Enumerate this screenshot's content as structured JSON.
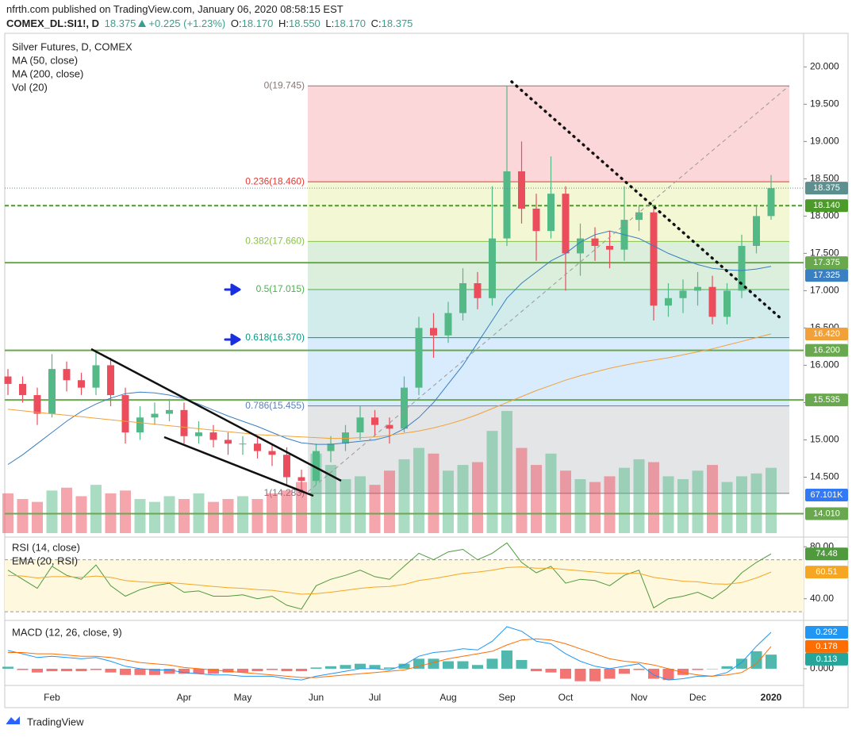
{
  "header": {
    "published": "nfrth.com published on TradingView.com, January 06, 2020 08:58:15 EST",
    "symbol": "COMEX_DL:SI1!, D",
    "last": "18.375",
    "change": "+0.225 (+1.23%)",
    "ohlc": [
      {
        "key": "O:",
        "value": "18.170"
      },
      {
        "key": "H:",
        "value": "18.550"
      },
      {
        "key": "L:",
        "value": "18.170"
      },
      {
        "key": "C:",
        "value": "18.375"
      }
    ]
  },
  "footer": {
    "brand": "TradingView"
  },
  "chart_data": [
    {
      "type": "candlestick",
      "title": "Silver Futures, D, COMEX",
      "categories": [
        null,
        null,
        null,
        "Feb",
        null,
        null,
        null,
        null,
        null,
        null,
        null,
        null,
        "Apr",
        null,
        null,
        null,
        "May",
        null,
        null,
        null,
        null,
        "Jun",
        null,
        null,
        null,
        "Jul",
        null,
        null,
        null,
        null,
        "Aug",
        null,
        null,
        null,
        "Sep",
        null,
        null,
        null,
        "Oct",
        null,
        null,
        null,
        null,
        "Nov",
        null,
        null,
        null,
        "Dec",
        null,
        null,
        null,
        null,
        "2020"
      ],
      "open": [
        15.85,
        15.75,
        15.6,
        15.35,
        15.95,
        15.8,
        15.7,
        16.0,
        15.6,
        15.1,
        15.3,
        15.35,
        15.4,
        15.05,
        15.1,
        15.0,
        14.95,
        14.95,
        14.85,
        14.8,
        14.5,
        14.45,
        14.85,
        14.95,
        15.1,
        15.3,
        15.2,
        15.15,
        15.7,
        16.5,
        16.4,
        16.7,
        17.1,
        16.9,
        17.7,
        18.6,
        18.1,
        17.8,
        18.3,
        17.5,
        17.7,
        17.6,
        17.55,
        17.95,
        18.05,
        16.8,
        16.9,
        17.0,
        17.05,
        16.65,
        17.0,
        17.6,
        18.0
      ],
      "high": [
        15.95,
        15.85,
        15.7,
        16.15,
        16.05,
        15.9,
        16.2,
        16.1,
        15.7,
        15.45,
        15.5,
        15.55,
        15.5,
        15.25,
        15.2,
        15.1,
        15.05,
        15.05,
        14.95,
        14.9,
        14.6,
        14.95,
        15.05,
        15.2,
        15.45,
        15.4,
        15.3,
        15.85,
        16.65,
        16.7,
        16.85,
        17.3,
        17.25,
        18.4,
        19.745,
        19.0,
        18.3,
        18.8,
        18.4,
        17.9,
        17.85,
        17.8,
        18.4,
        18.15,
        18.1,
        17.1,
        17.15,
        17.25,
        17.2,
        17.1,
        17.75,
        18.15,
        18.55
      ],
      "low": [
        15.6,
        15.5,
        15.2,
        15.3,
        15.65,
        15.6,
        15.6,
        15.45,
        14.95,
        15.0,
        15.2,
        15.25,
        14.95,
        14.95,
        14.9,
        14.8,
        14.8,
        14.75,
        14.65,
        14.4,
        14.283,
        14.4,
        14.7,
        14.85,
        15.0,
        15.05,
        14.95,
        15.1,
        15.6,
        16.1,
        16.3,
        16.6,
        16.75,
        16.8,
        17.6,
        17.9,
        17.4,
        17.7,
        17.0,
        17.2,
        17.4,
        17.3,
        17.4,
        17.8,
        16.6,
        16.65,
        16.7,
        16.8,
        16.55,
        16.55,
        16.9,
        17.5,
        17.95
      ],
      "close": [
        15.75,
        15.6,
        15.35,
        15.95,
        15.8,
        15.7,
        16.0,
        15.6,
        15.1,
        15.3,
        15.35,
        15.4,
        15.05,
        15.1,
        15.0,
        14.95,
        14.95,
        14.85,
        14.8,
        14.5,
        14.45,
        14.85,
        14.95,
        15.1,
        15.3,
        15.2,
        15.15,
        15.7,
        16.5,
        16.4,
        16.7,
        17.1,
        16.9,
        17.7,
        18.6,
        18.1,
        17.8,
        18.3,
        17.5,
        17.7,
        17.6,
        17.55,
        17.95,
        18.05,
        16.8,
        16.9,
        17.0,
        17.05,
        16.65,
        17.0,
        17.6,
        18.0,
        18.375
      ],
      "up_color": "#53b987",
      "down_color": "#eb4d5c",
      "last_price_color": "#5e8f8f",
      "ylim": [
        13.75,
        20.45
      ],
      "yticks": [
        {
          "value": 14.5,
          "label": "14.500"
        },
        {
          "value": 15,
          "label": "15.000"
        },
        {
          "value": 15.5,
          "label": "15.500"
        },
        {
          "value": 16,
          "label": "16.000"
        },
        {
          "value": 16.5,
          "label": "16.500"
        },
        {
          "value": 17,
          "label": "17.000"
        },
        {
          "value": 17.5,
          "label": "17.500"
        },
        {
          "value": 18,
          "label": "18.000"
        },
        {
          "value": 18.5,
          "label": "18.500"
        },
        {
          "value": 19,
          "label": "19.000"
        },
        {
          "value": 19.5,
          "label": "19.500"
        },
        {
          "value": 20,
          "label": "20.000"
        }
      ],
      "y2lim": [
        0,
        880
      ],
      "series": [
        {
          "name": "MA (50, close)",
          "color": "#3a7fc1",
          "values": [
            14.67,
            14.8,
            14.95,
            15.1,
            15.25,
            15.38,
            15.48,
            15.56,
            15.62,
            15.64,
            15.63,
            15.6,
            15.55,
            15.48,
            15.4,
            15.32,
            15.25,
            15.18,
            15.1,
            15.02,
            14.96,
            14.94,
            14.94,
            14.96,
            14.98,
            15.0,
            15.05,
            15.15,
            15.3,
            15.5,
            15.75,
            16.0,
            16.3,
            16.6,
            16.9,
            17.1,
            17.25,
            17.4,
            17.5,
            17.65,
            17.75,
            17.8,
            17.75,
            17.7,
            17.6,
            17.5,
            17.42,
            17.35,
            17.3,
            17.28,
            17.27,
            17.29,
            17.325
          ]
        },
        {
          "name": "MA (200, close)",
          "color": "#f2a13a",
          "values": [
            15.41,
            15.39,
            15.37,
            15.35,
            15.33,
            15.31,
            15.29,
            15.27,
            15.25,
            15.23,
            15.21,
            15.19,
            15.17,
            15.15,
            15.13,
            15.11,
            15.09,
            15.07,
            15.06,
            15.05,
            15.04,
            15.03,
            15.02,
            15.02,
            15.03,
            15.04,
            15.06,
            15.09,
            15.12,
            15.16,
            15.21,
            15.27,
            15.34,
            15.42,
            15.5,
            15.58,
            15.66,
            15.73,
            15.8,
            15.86,
            15.91,
            15.96,
            16.0,
            16.04,
            16.07,
            16.1,
            16.14,
            16.18,
            16.22,
            16.27,
            16.32,
            16.37,
            16.42
          ],
          "value_labels": [
            null,
            null,
            null,
            null,
            null,
            null,
            null,
            null,
            null,
            null,
            null,
            null,
            null,
            null,
            null,
            null,
            null,
            null,
            null,
            null,
            null,
            null,
            null,
            null,
            null,
            null,
            null,
            null,
            null,
            null,
            null,
            null,
            null,
            null,
            null,
            null,
            null,
            null,
            null,
            null,
            null,
            null,
            null,
            null,
            null,
            null,
            null,
            null,
            null,
            null,
            null,
            null,
            "16.420"
          ]
        },
        {
          "name": "Vol (20)",
          "axis": "y2",
          "up_color": "rgba(83,185,135,0.5)",
          "down_color": "rgba(235,77,92,0.5)",
          "values": [
            70,
            60,
            55,
            75,
            80,
            65,
            85,
            70,
            75,
            60,
            55,
            65,
            60,
            70,
            55,
            60,
            65,
            60,
            70,
            75,
            90,
            140,
            120,
            95,
            100,
            85,
            110,
            130,
            150,
            140,
            110,
            120,
            125,
            180,
            215,
            150,
            120,
            140,
            110,
            95,
            90,
            100,
            115,
            130,
            125,
            100,
            95,
            110,
            120,
            90,
            100,
            105,
            115
          ],
          "ma": {
            "value": 67.101,
            "label": "67.101K",
            "color": "#3179f5"
          }
        }
      ],
      "fib_levels": [
        {
          "value": 19.745,
          "label": "0(19.745)",
          "color": "#8a7676",
          "fill": "rgba(242,54,69,0.2)"
        },
        {
          "value": 18.46,
          "label": "0.236(18.460)",
          "color": "#e53935",
          "fill": "rgba(205,220,57,0.22)"
        },
        {
          "value": 17.66,
          "label": "0.382(17.660)",
          "color": "#8bc34a",
          "fill": "rgba(76,175,80,0.2)"
        },
        {
          "value": 17.015,
          "label": "0.5(17.015)",
          "color": "#4caf50",
          "fill": "rgba(0,150,136,0.18)"
        },
        {
          "value": 16.37,
          "label": "0.618(16.370)",
          "color": "#089981",
          "fill": "rgba(100,181,246,0.25)"
        },
        {
          "value": 15.455,
          "label": "0.786(15.455)",
          "color": "#5d80b6",
          "fill": "rgba(120,123,134,0.2)"
        },
        {
          "value": 14.283,
          "label": "1(14.283)",
          "color": "#787b86"
        }
      ],
      "hlines": [
        {
          "value": 18.14,
          "label": "18.140",
          "color": "#4c9a2a",
          "dashed": true
        },
        {
          "value": 17.375,
          "label": "17.375",
          "color": "#6aa84f"
        },
        {
          "value": 16.2,
          "label": "16.200",
          "color": "#6aa84f"
        },
        {
          "value": 15.535,
          "label": "15.535",
          "color": "#6aa84f"
        },
        {
          "value": 14.01,
          "label": "14.010",
          "color": "#6aa84f"
        }
      ]
    },
    {
      "type": "line",
      "ylim": [
        25.8,
        85
      ],
      "yticks": [
        {
          "value": 40,
          "label": "40.00"
        },
        {
          "value": 80,
          "label": "80.00"
        }
      ],
      "band": [
        30,
        70
      ],
      "band_color": "#fdf8de",
      "series": [
        {
          "name": "RSI (14, close)",
          "color": "#4f9a3c",
          "values": [
            62,
            55,
            48,
            65,
            58,
            55,
            66,
            50,
            42,
            47,
            50,
            52,
            45,
            46,
            42,
            42,
            43,
            40,
            42,
            35,
            32,
            50,
            55,
            58,
            62,
            57,
            55,
            65,
            75,
            70,
            76,
            78,
            70,
            75,
            83,
            68,
            60,
            65,
            52,
            55,
            54,
            50,
            58,
            62,
            33,
            40,
            42,
            45,
            40,
            48,
            60,
            68,
            74.48
          ]
        },
        {
          "name": "EMA (20, RSI)",
          "color": "#f5a623",
          "values": [
            58,
            57.5,
            56,
            57,
            57,
            56.5,
            57.5,
            56.5,
            54,
            53,
            52.5,
            52.5,
            51.5,
            50.5,
            49.5,
            48.5,
            48,
            47,
            46.5,
            45,
            43.5,
            44,
            45,
            46.5,
            48,
            49,
            49.5,
            51,
            54,
            55.5,
            57.5,
            59.5,
            60.5,
            62,
            64,
            64.5,
            63.5,
            63.5,
            62.5,
            61.5,
            60.5,
            59.5,
            59.5,
            59.5,
            56.5,
            55,
            53.5,
            53,
            51.5,
            51.2,
            52.5,
            56,
            60.51
          ]
        }
      ]
    },
    {
      "type": "line",
      "title": "MACD (12, 26, close, 9)",
      "ylim": [
        -0.121,
        0.349
      ],
      "yticks": [
        {
          "value": 0,
          "label": "0.000"
        }
      ],
      "series": [
        {
          "color": "#2196f3",
          "values": [
            0.146,
            0.12,
            0.09,
            0.1,
            0.09,
            0.08,
            0.09,
            0.06,
            0.02,
            0.0,
            -0.01,
            -0.01,
            -0.03,
            -0.04,
            -0.05,
            -0.05,
            -0.06,
            -0.06,
            -0.06,
            -0.08,
            -0.09,
            -0.06,
            -0.04,
            -0.02,
            0.0,
            0.0,
            -0.01,
            0.03,
            0.1,
            0.13,
            0.14,
            0.16,
            0.15,
            0.22,
            0.336,
            0.3,
            0.22,
            0.2,
            0.12,
            0.06,
            0.02,
            0.0,
            0.02,
            0.04,
            -0.05,
            -0.09,
            -0.08,
            -0.06,
            -0.06,
            -0.03,
            0.05,
            0.18,
            0.292
          ]
        },
        {
          "color": "#ff6d00",
          "values": [
            0.13,
            0.13,
            0.12,
            0.12,
            0.11,
            0.1,
            0.1,
            0.09,
            0.07,
            0.05,
            0.04,
            0.03,
            0.01,
            0.0,
            -0.01,
            -0.02,
            -0.03,
            -0.04,
            -0.05,
            -0.06,
            -0.07,
            -0.07,
            -0.06,
            -0.05,
            -0.04,
            -0.03,
            -0.02,
            -0.01,
            0.02,
            0.05,
            0.08,
            0.1,
            0.12,
            0.14,
            0.19,
            0.23,
            0.24,
            0.23,
            0.2,
            0.16,
            0.12,
            0.08,
            0.06,
            0.05,
            0.03,
            0.0,
            -0.03,
            -0.05,
            -0.06,
            -0.05,
            -0.03,
            0.04,
            0.178
          ]
        }
      ],
      "histogram": {
        "up_color": "#26a69a",
        "down_color": "#ef5350",
        "values": [
          0.016,
          -0.01,
          -0.03,
          -0.02,
          -0.02,
          -0.02,
          -0.01,
          -0.03,
          -0.05,
          -0.05,
          -0.05,
          -0.04,
          -0.04,
          -0.04,
          -0.04,
          -0.03,
          -0.03,
          -0.02,
          -0.01,
          -0.02,
          -0.02,
          0.01,
          0.02,
          0.03,
          0.04,
          0.03,
          0.01,
          0.04,
          0.08,
          0.08,
          0.06,
          0.06,
          0.03,
          0.08,
          0.146,
          0.07,
          -0.02,
          -0.03,
          -0.08,
          -0.1,
          -0.1,
          -0.08,
          -0.04,
          -0.01,
          -0.08,
          -0.09,
          -0.05,
          -0.01,
          0.0,
          0.02,
          0.08,
          0.14,
          0.113
        ]
      }
    }
  ]
}
